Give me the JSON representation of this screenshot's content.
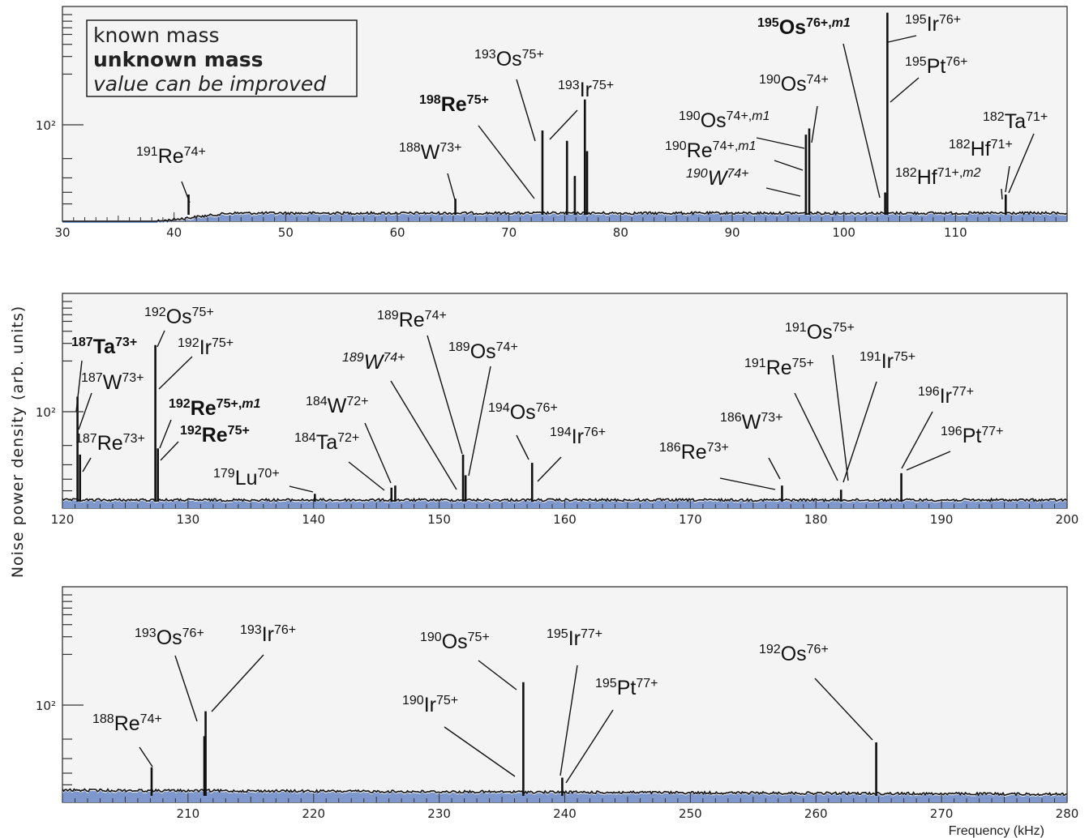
{
  "chart_data": {
    "type": "line",
    "ylabel": "Noise power density (arb. units)",
    "xlabel": "Frequency (kHz)",
    "y_scale": "log",
    "y_tick_label": "10²",
    "legend": {
      "placement": "top-left",
      "entries": [
        {
          "label": "known mass",
          "style": "normal"
        },
        {
          "label": "unknown mass",
          "style": "bold"
        },
        {
          "label": "value can be improved",
          "style": "italic"
        }
      ]
    },
    "colors": {
      "fill": "#7e97cc",
      "trace": "#111111",
      "plot_bg": "#f4f4f4"
    },
    "panels": [
      {
        "name": "panel-1",
        "xlim": [
          30,
          120
        ],
        "xticks": [
          30,
          40,
          50,
          60,
          70,
          80,
          90,
          100,
          110
        ],
        "peaks": [
          {
            "x": 41.3,
            "h": 0.09
          },
          {
            "x": 65.2,
            "h": 0.07
          },
          {
            "x": 73.0,
            "h": 0.4
          },
          {
            "x": 75.2,
            "h": 0.35
          },
          {
            "x": 75.9,
            "h": 0.18
          },
          {
            "x": 76.8,
            "h": 0.55
          },
          {
            "x": 77.0,
            "h": 0.3
          },
          {
            "x": 96.6,
            "h": 0.38
          },
          {
            "x": 96.9,
            "h": 0.41
          },
          {
            "x": 103.7,
            "h": 0.1
          },
          {
            "x": 103.9,
            "h": 0.97
          },
          {
            "x": 114.5,
            "h": 0.09
          }
        ],
        "labels": [
          {
            "iso": "191",
            "el": "Re",
            "ch": "74+",
            "style": "normal"
          },
          {
            "iso": "188",
            "el": "W",
            "ch": "73+",
            "style": "normal"
          },
          {
            "iso": "198",
            "el": "Re",
            "ch": "75+",
            "style": "bold"
          },
          {
            "iso": "193",
            "el": "Os",
            "ch": "75+",
            "style": "normal"
          },
          {
            "iso": "193",
            "el": "Ir",
            "ch": "75+",
            "style": "normal"
          },
          {
            "iso": "190",
            "el": "Os",
            "ch": "74+",
            "style": "normal"
          },
          {
            "iso": "190",
            "el": "Os",
            "ch": "74+,",
            "isomer": "m1",
            "style": "normal"
          },
          {
            "iso": "190",
            "el": "Re",
            "ch": "74+,",
            "isomer": "m1",
            "style": "normal"
          },
          {
            "iso": "190",
            "el": "W",
            "ch": "74+",
            "style": "italic"
          },
          {
            "iso": "195",
            "el": "Os",
            "ch": "76+,",
            "isomer": "m1",
            "style": "bold"
          },
          {
            "iso": "195",
            "el": "Ir",
            "ch": "76+",
            "style": "normal"
          },
          {
            "iso": "195",
            "el": "Pt",
            "ch": "76+",
            "style": "normal"
          },
          {
            "iso": "182",
            "el": "Ta",
            "ch": "71+",
            "style": "normal"
          },
          {
            "iso": "182",
            "el": "Hf",
            "ch": "71+",
            "style": "normal"
          },
          {
            "iso": "182",
            "el": "Hf",
            "ch": "71+,",
            "isomer": "m2",
            "style": "normal"
          }
        ]
      },
      {
        "name": "panel-2",
        "xlim": [
          120,
          200
        ],
        "xticks": [
          120,
          130,
          140,
          150,
          160,
          170,
          180,
          190,
          200
        ],
        "peaks": [
          {
            "x": 121.2,
            "h": 0.5
          },
          {
            "x": 121.4,
            "h": 0.22
          },
          {
            "x": 127.4,
            "h": 0.75
          },
          {
            "x": 127.6,
            "h": 0.25
          },
          {
            "x": 140.1,
            "h": 0.03
          },
          {
            "x": 146.2,
            "h": 0.06
          },
          {
            "x": 146.5,
            "h": 0.07
          },
          {
            "x": 151.9,
            "h": 0.22
          },
          {
            "x": 152.1,
            "h": 0.12
          },
          {
            "x": 157.4,
            "h": 0.18
          },
          {
            "x": 177.3,
            "h": 0.07
          },
          {
            "x": 182.0,
            "h": 0.05
          },
          {
            "x": 186.8,
            "h": 0.13
          }
        ],
        "labels": [
          {
            "iso": "187",
            "el": "Ta",
            "ch": "73+",
            "style": "bold"
          },
          {
            "iso": "192",
            "el": "Os",
            "ch": "75+",
            "style": "normal"
          },
          {
            "iso": "192",
            "el": "Ir",
            "ch": "75+",
            "style": "normal"
          },
          {
            "iso": "187",
            "el": "W",
            "ch": "73+",
            "style": "normal"
          },
          {
            "iso": "192",
            "el": "Re",
            "ch": "75+,",
            "isomer": "m1",
            "style": "bold"
          },
          {
            "iso": "192",
            "el": "Re",
            "ch": "75+",
            "style": "bold"
          },
          {
            "iso": "187",
            "el": "Re",
            "ch": "73+",
            "style": "normal"
          },
          {
            "iso": "179",
            "el": "Lu",
            "ch": "70+",
            "style": "normal"
          },
          {
            "iso": "184",
            "el": "W",
            "ch": "72+",
            "style": "normal"
          },
          {
            "iso": "184",
            "el": "Ta",
            "ch": "72+",
            "style": "normal"
          },
          {
            "iso": "189",
            "el": "Re",
            "ch": "74+",
            "style": "normal"
          },
          {
            "iso": "189",
            "el": "W",
            "ch": "74+",
            "style": "italic"
          },
          {
            "iso": "189",
            "el": "Os",
            "ch": "74+",
            "style": "normal"
          },
          {
            "iso": "194",
            "el": "Os",
            "ch": "76+",
            "style": "normal"
          },
          {
            "iso": "194",
            "el": "Ir",
            "ch": "76+",
            "style": "normal"
          },
          {
            "iso": "186",
            "el": "Re",
            "ch": "73+",
            "style": "normal"
          },
          {
            "iso": "186",
            "el": "W",
            "ch": "73+",
            "style": "normal"
          },
          {
            "iso": "191",
            "el": "Os",
            "ch": "75+",
            "style": "normal"
          },
          {
            "iso": "191",
            "el": "Re",
            "ch": "75+",
            "style": "normal"
          },
          {
            "iso": "191",
            "el": "Ir",
            "ch": "75+",
            "style": "normal"
          },
          {
            "iso": "196",
            "el": "Ir",
            "ch": "77+",
            "style": "normal"
          },
          {
            "iso": "196",
            "el": "Pt",
            "ch": "77+",
            "style": "normal"
          }
        ]
      },
      {
        "name": "panel-3",
        "xlim": [
          200,
          280
        ],
        "xticks": [
          210,
          220,
          230,
          240,
          250,
          260,
          270,
          280
        ],
        "peaks": [
          {
            "x": 207.1,
            "h": 0.13
          },
          {
            "x": 211.3,
            "h": 0.28
          },
          {
            "x": 211.4,
            "h": 0.4
          },
          {
            "x": 236.7,
            "h": 0.54
          },
          {
            "x": 239.8,
            "h": 0.08
          },
          {
            "x": 264.8,
            "h": 0.25
          }
        ],
        "labels": [
          {
            "iso": "188",
            "el": "Re",
            "ch": "74+",
            "style": "normal"
          },
          {
            "iso": "193",
            "el": "Os",
            "ch": "76+",
            "style": "normal"
          },
          {
            "iso": "193",
            "el": "Ir",
            "ch": "76+",
            "style": "normal"
          },
          {
            "iso": "190",
            "el": "Os",
            "ch": "75+",
            "style": "normal"
          },
          {
            "iso": "190",
            "el": "Ir",
            "ch": "75+",
            "style": "normal"
          },
          {
            "iso": "195",
            "el": "Ir",
            "ch": "77+",
            "style": "normal"
          },
          {
            "iso": "195",
            "el": "Pt",
            "ch": "77+",
            "style": "normal"
          },
          {
            "iso": "192",
            "el": "Os",
            "ch": "76+",
            "style": "normal"
          }
        ]
      }
    ]
  }
}
